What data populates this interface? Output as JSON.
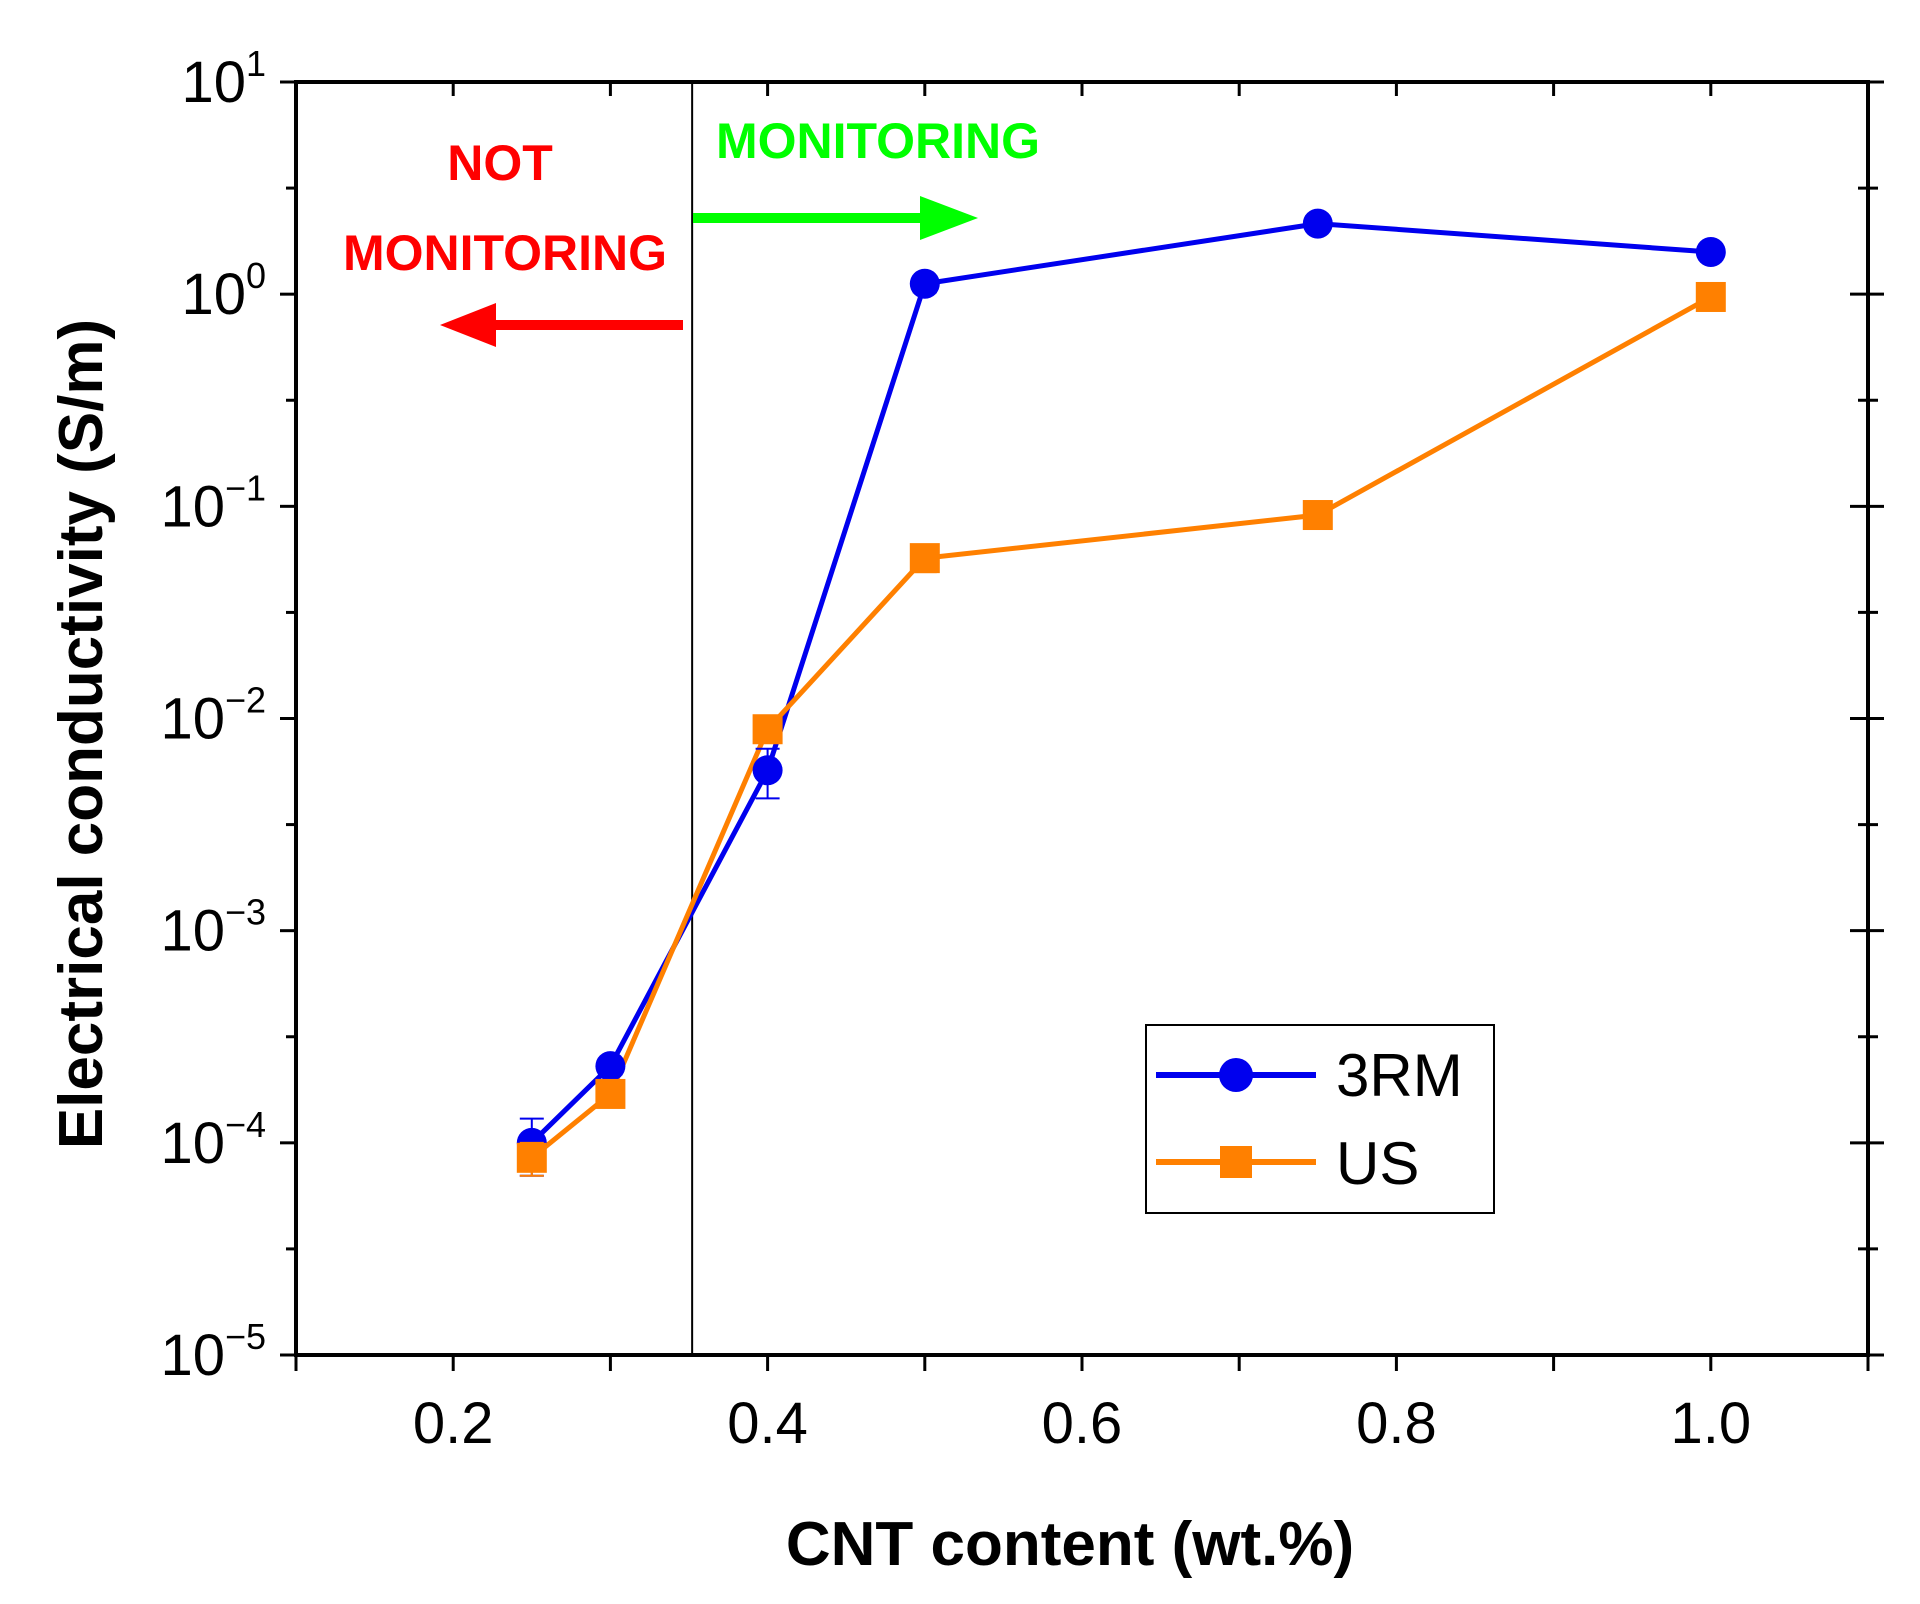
{
  "chart_data": {
    "type": "line",
    "xlabel": "CNT content (wt.%)",
    "ylabel": "Electrical conductivity (S/m)",
    "xlim": [
      0.1,
      1.1
    ],
    "ylim": [
      1e-05,
      10
    ],
    "yscale": "log",
    "x_ticks": [
      0.2,
      0.4,
      0.6,
      0.8,
      1.0
    ],
    "x_tick_labels": [
      "0.2",
      "0.4",
      "0.6",
      "0.8",
      "1.0"
    ],
    "y_ticks": [
      {
        "base": "10",
        "exp": "1",
        "value": 10
      },
      {
        "base": "10",
        "exp": "0",
        "value": 1
      },
      {
        "base": "10",
        "exp": "−1",
        "value": 0.1
      },
      {
        "base": "10",
        "exp": "−2",
        "value": 0.01
      },
      {
        "base": "10",
        "exp": "−3",
        "value": 0.001
      },
      {
        "base": "10",
        "exp": "−4",
        "value": 0.0001
      },
      {
        "base": "10",
        "exp": "−5",
        "value": 1e-05
      }
    ],
    "grid": false,
    "legend_position": "bottom-right",
    "threshold_x": 0.352,
    "series": [
      {
        "name": "3RM",
        "color": "#0000ee",
        "marker": "circle",
        "x": [
          0.25,
          0.3,
          0.4,
          0.5,
          0.75,
          1.0
        ],
        "y": [
          0.0001,
          0.00023,
          0.0057,
          1.12,
          2.15,
          1.58
        ],
        "yerr": [
          3e-05,
          2e-05,
          0.0015,
          0.1,
          0.15,
          0.1
        ]
      },
      {
        "name": "US",
        "color": "#ff8000",
        "marker": "square",
        "x": [
          0.25,
          0.3,
          0.4,
          0.5,
          0.75,
          1.0
        ],
        "y": [
          8.5e-05,
          0.00017,
          0.0089,
          0.057,
          0.091,
          0.97
        ],
        "yerr": [
          1.5e-05,
          2e-05,
          0.001,
          0.008,
          0.005,
          0.05
        ]
      }
    ],
    "annotations": [
      {
        "text": "NOT",
        "color": "#ff0000",
        "arrow": "left"
      },
      {
        "text": "MONITORING",
        "color": "#ff0000",
        "arrow": "left"
      },
      {
        "text": "MONITORING",
        "color": "#00ff00",
        "arrow": "right"
      }
    ]
  }
}
